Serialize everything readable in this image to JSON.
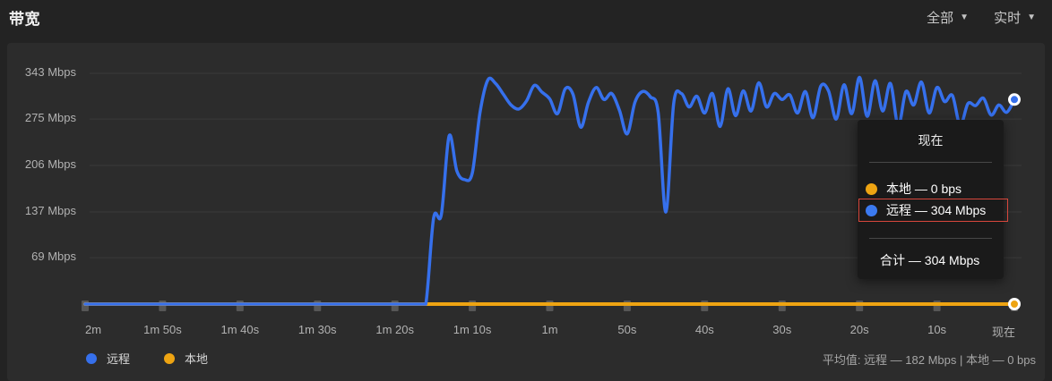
{
  "header": {
    "title": "带宽",
    "filters": [
      {
        "key": "scope",
        "label": "全部",
        "icon": "chevron-down-icon"
      },
      {
        "key": "interval",
        "label": "实时",
        "icon": "chevron-down-icon"
      }
    ]
  },
  "chart_data": {
    "type": "line",
    "title": "带宽",
    "x_axis": {
      "labels": [
        "2m",
        "1m 50s",
        "1m 40s",
        "1m 30s",
        "1m 20s",
        "1m 10s",
        "1m",
        "50s",
        "40s",
        "30s",
        "20s",
        "10s",
        "现在"
      ],
      "range_seconds": [
        -120,
        0
      ],
      "tick_interval_seconds": 10
    },
    "y_axis": {
      "ticks": [
        {
          "label": "343 Mbps",
          "value": 343
        },
        {
          "label": "275 Mbps",
          "value": 275
        },
        {
          "label": "206 Mbps",
          "value": 206
        },
        {
          "label": "137 Mbps",
          "value": 137
        },
        {
          "label": "69 Mbps",
          "value": 69
        }
      ],
      "min": 0,
      "unit": "Mbps"
    },
    "grid": "horizontal",
    "legend_position": "bottom-left",
    "series": [
      {
        "key": "remote",
        "name": "远程",
        "color": "#3670ec",
        "current_value_label": "304 Mbps",
        "sample_interval_s": 1,
        "x_start_s": -120,
        "values": [
          0,
          0,
          0,
          0,
          0,
          0,
          0,
          0,
          0,
          0,
          0,
          0,
          0,
          0,
          0,
          0,
          0,
          0,
          0,
          0,
          0,
          0,
          0,
          0,
          0,
          0,
          0,
          0,
          0,
          0,
          0,
          0,
          0,
          0,
          0,
          0,
          0,
          0,
          0,
          0,
          0,
          0,
          0,
          0,
          0,
          128,
          133,
          250,
          198,
          185,
          195,
          285,
          333,
          328,
          312,
          296,
          290,
          302,
          325,
          315,
          305,
          283,
          320,
          312,
          263,
          300,
          322,
          304,
          313,
          288,
          253,
          300,
          316,
          308,
          285,
          137,
          298,
          313,
          293,
          309,
          284,
          313,
          264,
          320,
          280,
          317,
          287,
          329,
          293,
          313,
          304,
          311,
          284,
          316,
          277,
          324,
          317,
          275,
          326,
          283,
          337,
          279,
          332,
          287,
          328,
          265,
          316,
          296,
          330,
          284,
          322,
          301,
          310,
          266,
          298,
          295,
          306,
          281,
          296,
          285,
          304
        ]
      },
      {
        "key": "local",
        "name": "本地",
        "color": "#eea412",
        "current_value_label": "0 bps",
        "sample_interval_s": 1,
        "x_start_s": -120,
        "constant": 0
      }
    ]
  },
  "tooltip": {
    "title": "现在",
    "separator": "—",
    "rows": [
      {
        "key": "local",
        "name": "本地",
        "value": "0 bps",
        "color": "#eea412",
        "highlighted": false
      },
      {
        "key": "remote",
        "name": "远程",
        "value": "304 Mbps",
        "color": "#3b7af0",
        "highlighted": true
      }
    ],
    "total": {
      "name": "合计",
      "value": "304 Mbps"
    },
    "highlight_color": "#d8473c"
  },
  "legend": [
    {
      "key": "remote",
      "label": "远程",
      "color": "#3670ec"
    },
    {
      "key": "local",
      "label": "本地",
      "color": "#eea412"
    }
  ],
  "footer": {
    "average_text": "平均值: 远程 — 182 Mbps | 本地 — 0 bps"
  },
  "colors": {
    "page_bg": "#232323",
    "panel_bg": "#2c2c2c",
    "grid": "#3a3a3a",
    "tick_mark": "#575757",
    "axis_text": "#b2b2b2",
    "remote_line": "#3670ec",
    "local_line": "#eea412",
    "tooltip_bg": "#1a1a1a",
    "highlight_border": "#d8473c",
    "marker_ring": "#ffffff"
  }
}
